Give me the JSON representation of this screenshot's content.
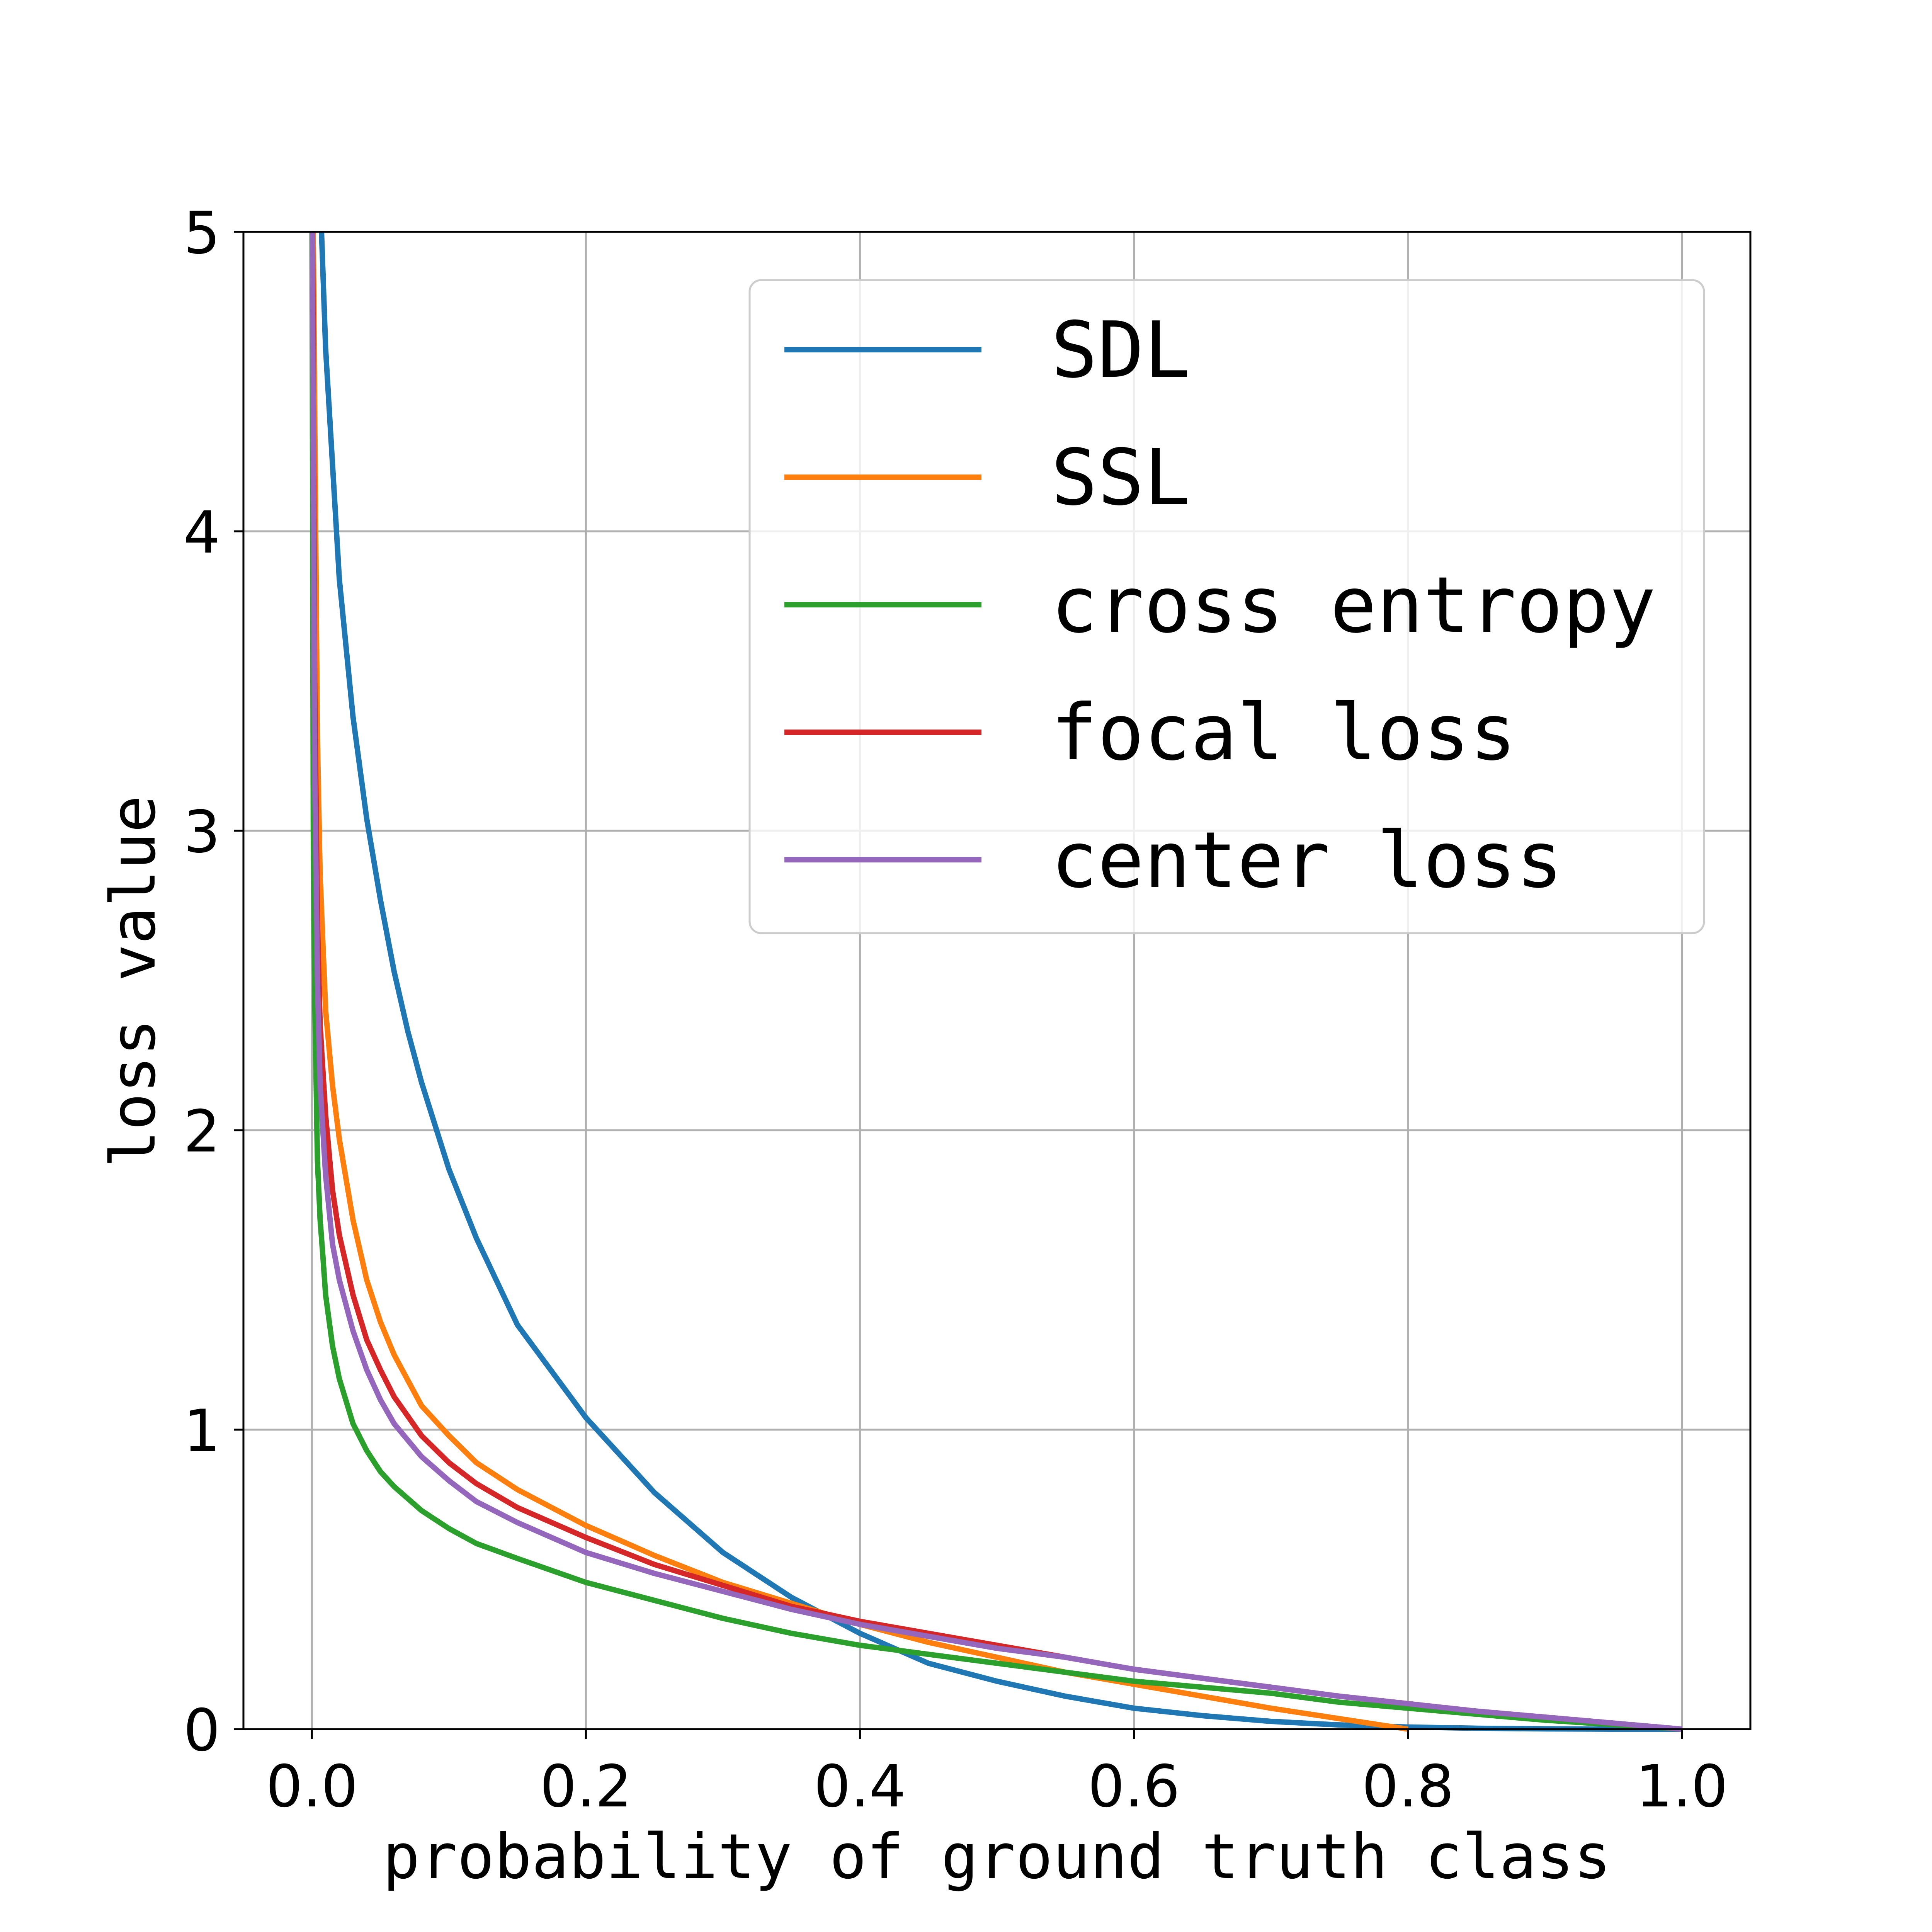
{
  "chart_data": {
    "type": "line",
    "xlabel": "probability of ground truth class",
    "ylabel": "loss value",
    "xlim": [
      -0.05,
      1.05
    ],
    "ylim": [
      0,
      5
    ],
    "xticks": [
      "0.0",
      "0.2",
      "0.4",
      "0.6",
      "0.8",
      "1.0"
    ],
    "yticks": [
      "0",
      "1",
      "2",
      "3",
      "4",
      "5"
    ],
    "grid": true,
    "legend_position": "upper-right",
    "series": [
      {
        "name": "SDL",
        "color": "#1f77b4",
        "x": [
          0.007,
          0.01,
          0.02,
          0.03,
          0.04,
          0.05,
          0.06,
          0.07,
          0.08,
          0.1,
          0.12,
          0.15,
          0.2,
          0.25,
          0.3,
          0.35,
          0.4,
          0.45,
          0.5,
          0.55,
          0.6,
          0.65,
          0.7,
          0.75,
          0.8,
          0.85,
          0.9,
          0.95,
          1.0
        ],
        "y": [
          5.0,
          4.61,
          3.84,
          3.38,
          3.04,
          2.77,
          2.53,
          2.33,
          2.16,
          1.87,
          1.64,
          1.35,
          1.04,
          0.79,
          0.59,
          0.44,
          0.32,
          0.22,
          0.16,
          0.11,
          0.07,
          0.045,
          0.026,
          0.014,
          0.007,
          0.003,
          0.001,
          0.0,
          0.0
        ]
      },
      {
        "name": "SSL",
        "color": "#ff7f0e",
        "x": [
          0.001,
          0.002,
          0.004,
          0.006,
          0.01,
          0.015,
          0.02,
          0.03,
          0.04,
          0.05,
          0.06,
          0.08,
          0.1,
          0.12,
          0.15,
          0.2,
          0.25,
          0.3,
          0.35,
          0.4,
          0.45,
          0.5,
          0.55,
          0.6,
          0.65,
          0.7,
          0.75,
          0.8
        ],
        "y": [
          5.0,
          4.4,
          3.3,
          2.85,
          2.4,
          2.15,
          1.97,
          1.7,
          1.5,
          1.36,
          1.25,
          1.08,
          0.98,
          0.89,
          0.8,
          0.68,
          0.58,
          0.49,
          0.42,
          0.35,
          0.29,
          0.24,
          0.19,
          0.15,
          0.11,
          0.07,
          0.035,
          0.0
        ]
      },
      {
        "name": "cross entropy",
        "color": "#2ca02c",
        "x": [
          0.0001,
          0.001,
          0.002,
          0.004,
          0.006,
          0.008,
          0.01,
          0.015,
          0.02,
          0.03,
          0.04,
          0.05,
          0.06,
          0.08,
          0.1,
          0.12,
          0.15,
          0.2,
          0.25,
          0.3,
          0.35,
          0.4,
          0.45,
          0.5,
          0.55,
          0.6,
          0.65,
          0.7,
          0.75,
          0.8,
          0.85,
          0.9,
          0.95,
          1.0
        ],
        "y": [
          5.0,
          3.0,
          2.45,
          1.9,
          1.7,
          1.58,
          1.45,
          1.28,
          1.17,
          1.02,
          0.93,
          0.86,
          0.81,
          0.73,
          0.67,
          0.62,
          0.57,
          0.49,
          0.43,
          0.37,
          0.32,
          0.28,
          0.25,
          0.22,
          0.19,
          0.16,
          0.14,
          0.12,
          0.09,
          0.07,
          0.05,
          0.03,
          0.015,
          0.0
        ]
      },
      {
        "name": "focal loss",
        "color": "#d62728",
        "x": [
          0.0005,
          0.001,
          0.002,
          0.004,
          0.006,
          0.01,
          0.015,
          0.02,
          0.03,
          0.04,
          0.05,
          0.06,
          0.08,
          0.1,
          0.12,
          0.15,
          0.2,
          0.25,
          0.3,
          0.35,
          0.4,
          0.45,
          0.5,
          0.55,
          0.6,
          0.65,
          0.7,
          0.75,
          0.8,
          0.85,
          0.9,
          0.95,
          1.0
        ],
        "y": [
          5.0,
          4.5,
          3.5,
          2.7,
          2.35,
          2.05,
          1.8,
          1.65,
          1.45,
          1.3,
          1.2,
          1.11,
          0.98,
          0.89,
          0.82,
          0.74,
          0.64,
          0.55,
          0.48,
          0.41,
          0.36,
          0.32,
          0.28,
          0.24,
          0.2,
          0.17,
          0.14,
          0.11,
          0.085,
          0.06,
          0.04,
          0.02,
          0.0
        ]
      },
      {
        "name": "center loss",
        "color": "#9467bd",
        "x": [
          0.0003,
          0.001,
          0.002,
          0.004,
          0.006,
          0.01,
          0.015,
          0.02,
          0.03,
          0.04,
          0.05,
          0.06,
          0.08,
          0.1,
          0.12,
          0.15,
          0.2,
          0.25,
          0.3,
          0.35,
          0.4,
          0.45,
          0.5,
          0.55,
          0.6,
          0.65,
          0.7,
          0.75,
          0.8,
          0.85,
          0.9,
          0.95,
          1.0
        ],
        "y": [
          5.0,
          4.2,
          3.2,
          2.5,
          2.15,
          1.85,
          1.62,
          1.5,
          1.33,
          1.2,
          1.1,
          1.02,
          0.91,
          0.83,
          0.76,
          0.69,
          0.59,
          0.52,
          0.46,
          0.4,
          0.35,
          0.31,
          0.27,
          0.24,
          0.2,
          0.17,
          0.14,
          0.11,
          0.085,
          0.06,
          0.04,
          0.02,
          0.0
        ]
      }
    ]
  }
}
